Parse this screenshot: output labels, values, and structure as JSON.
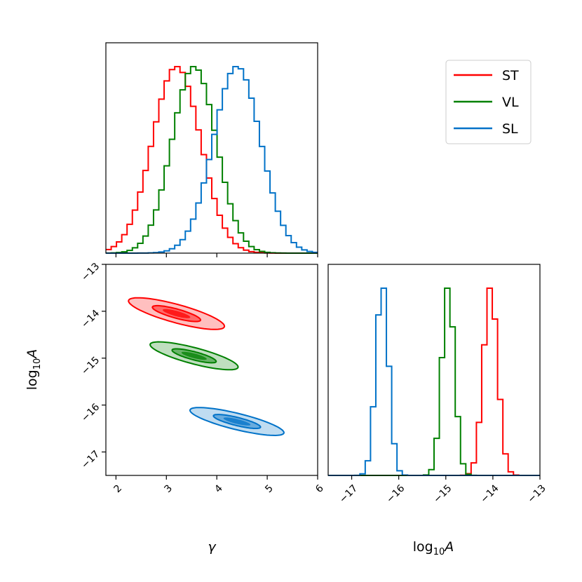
{
  "chart_data": {
    "type": "corner",
    "series": [
      {
        "name": "ST",
        "color": "#ff0000",
        "gamma_mean": 3.2,
        "gamma_sd": 0.48,
        "logA_mean": -14.05,
        "logA_sd": 0.17,
        "corr": -0.8
      },
      {
        "name": "VL",
        "color": "#008000",
        "gamma_mean": 3.55,
        "gamma_sd": 0.44,
        "logA_mean": -14.95,
        "logA_sd": 0.15,
        "corr": -0.8
      },
      {
        "name": "SL",
        "color": "#0072c8",
        "gamma_mean": 4.4,
        "gamma_sd": 0.47,
        "logA_mean": -16.35,
        "logA_sd": 0.15,
        "corr": -0.8
      }
    ],
    "gamma_axis": {
      "label": "γ",
      "range": [
        1.8,
        6
      ],
      "ticks": [
        "2",
        "3",
        "4",
        "5",
        "6"
      ],
      "tick_values": [
        2,
        3,
        4,
        5,
        6
      ]
    },
    "logA_axis": {
      "label_base": "log",
      "label_sub": "10",
      "label_var": "A",
      "range": [
        -17.5,
        -13
      ],
      "ticks": [
        "−17",
        "−16",
        "−15",
        "−14",
        "−13"
      ],
      "tick_values": [
        -17,
        -16,
        -15,
        -14,
        -13
      ]
    },
    "legend": {
      "placement": "top-right",
      "entries": [
        "ST",
        "VL",
        "SL"
      ]
    },
    "contour_levels": [
      0.39,
      0.86
    ],
    "bins": 40,
    "grid": false
  }
}
